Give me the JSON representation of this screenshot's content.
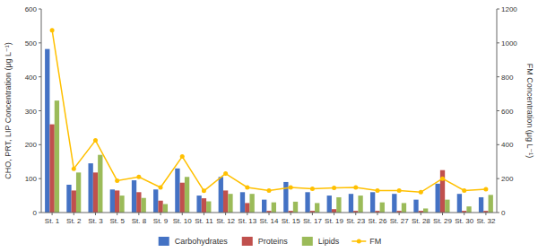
{
  "chart_data": {
    "type": "bar",
    "categories": [
      "St. 1",
      "St. 2",
      "St. 3",
      "St. 5",
      "St. 8",
      "St. 9",
      "St. 10",
      "St. 11",
      "St. 12",
      "St. 13",
      "St. 14",
      "St. 15",
      "St. 17",
      "St. 19",
      "St. 23",
      "St. 26",
      "St. 27",
      "St. 28",
      "St. 29",
      "St. 30",
      "St. 32"
    ],
    "series": [
      {
        "name": "Carbohydrates",
        "color": "#4472c4",
        "values": [
          482,
          82,
          145,
          68,
          95,
          68,
          130,
          50,
          105,
          60,
          38,
          90,
          60,
          50,
          55,
          60,
          55,
          38,
          85,
          55,
          45
        ]
      },
      {
        "name": "Proteins",
        "color": "#c0504d",
        "values": [
          260,
          65,
          118,
          65,
          60,
          35,
          88,
          42,
          65,
          28,
          5,
          5,
          5,
          10,
          5,
          5,
          5,
          5,
          125,
          5,
          5
        ]
      },
      {
        "name": "Lipids",
        "color": "#9bbb59",
        "values": [
          330,
          118,
          170,
          50,
          43,
          25,
          105,
          33,
          55,
          55,
          30,
          32,
          28,
          45,
          50,
          30,
          28,
          12,
          38,
          18,
          52
        ]
      },
      {
        "name": "FM",
        "color": "#ffc000",
        "type": "line",
        "marker": "circle",
        "axis": "y2",
        "values": [
          1075,
          258,
          425,
          188,
          210,
          148,
          330,
          128,
          230,
          148,
          130,
          148,
          140,
          145,
          148,
          130,
          130,
          120,
          200,
          130,
          138
        ]
      }
    ],
    "ylabel": "CHO, PRT, LIP Concentration  (μg L⁻¹)",
    "y2label": "FM Concentration  (μg L⁻¹)",
    "ylim": [
      0,
      600
    ],
    "yticks": [
      0,
      100,
      200,
      300,
      400,
      500,
      600
    ],
    "y2lim": [
      0,
      1200
    ],
    "y2ticks": [
      0,
      200,
      400,
      600,
      800,
      1000,
      1200
    ],
    "grid": false,
    "legend": "bottom"
  }
}
